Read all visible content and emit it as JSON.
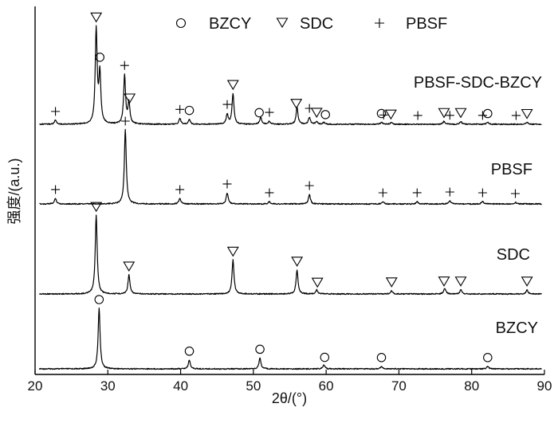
{
  "chart_data": {
    "type": "line",
    "xlabel": "2θ/(°)",
    "ylabel": "强度/(a.u.)",
    "xlim": [
      20,
      90
    ],
    "xticks": [
      20,
      30,
      40,
      50,
      60,
      70,
      80,
      90
    ],
    "grid": false,
    "legend": {
      "placement": "top-right",
      "items": [
        {
          "marker": "circle",
          "label": "BZCY"
        },
        {
          "marker": "triangle-down",
          "label": "SDC"
        },
        {
          "marker": "plus",
          "label": "PBSF"
        }
      ]
    },
    "series": [
      {
        "name": "BZCY",
        "peaks": [
          {
            "x": 28.8,
            "h": 0.95
          },
          {
            "x": 41.2,
            "h": 0.14
          },
          {
            "x": 50.9,
            "h": 0.17
          },
          {
            "x": 59.7,
            "h": 0.06
          },
          {
            "x": 67.6,
            "h": 0.04
          },
          {
            "x": 82.2,
            "h": 0.04
          }
        ],
        "markers": [
          {
            "x": 28.8,
            "type": "circle"
          },
          {
            "x": 41.2,
            "type": "circle"
          },
          {
            "x": 50.9,
            "type": "circle"
          },
          {
            "x": 59.8,
            "type": "circle"
          },
          {
            "x": 67.6,
            "type": "circle"
          },
          {
            "x": 82.2,
            "type": "circle"
          }
        ]
      },
      {
        "name": "SDC",
        "peaks": [
          {
            "x": 28.4,
            "h": 0.95
          },
          {
            "x": 32.9,
            "h": 0.23
          },
          {
            "x": 47.2,
            "h": 0.41
          },
          {
            "x": 56.0,
            "h": 0.29
          },
          {
            "x": 58.7,
            "h": 0.05
          },
          {
            "x": 69.0,
            "h": 0.04
          },
          {
            "x": 76.3,
            "h": 0.07
          },
          {
            "x": 78.5,
            "h": 0.05
          },
          {
            "x": 87.6,
            "h": 0.05
          }
        ],
        "markers": [
          {
            "x": 28.4,
            "type": "triangle"
          },
          {
            "x": 32.9,
            "type": "triangle"
          },
          {
            "x": 47.2,
            "type": "triangle"
          },
          {
            "x": 56.0,
            "type": "triangle"
          },
          {
            "x": 58.8,
            "type": "triangle"
          },
          {
            "x": 69.0,
            "type": "triangle"
          },
          {
            "x": 76.2,
            "type": "triangle"
          },
          {
            "x": 78.5,
            "type": "triangle"
          },
          {
            "x": 87.6,
            "type": "triangle"
          }
        ]
      },
      {
        "name": "PBSF",
        "peaks": [
          {
            "x": 22.8,
            "h": 0.07
          },
          {
            "x": 32.4,
            "h": 0.93
          },
          {
            "x": 39.9,
            "h": 0.07
          },
          {
            "x": 46.4,
            "h": 0.14
          },
          {
            "x": 52.2,
            "h": 0.03
          },
          {
            "x": 57.7,
            "h": 0.12
          },
          {
            "x": 67.8,
            "h": 0.03
          },
          {
            "x": 72.5,
            "h": 0.03
          },
          {
            "x": 77.0,
            "h": 0.04
          },
          {
            "x": 81.5,
            "h": 0.03
          },
          {
            "x": 86.0,
            "h": 0.02
          }
        ],
        "markers": [
          {
            "x": 22.8,
            "type": "plus"
          },
          {
            "x": 32.4,
            "type": "plus"
          },
          {
            "x": 39.9,
            "type": "plus"
          },
          {
            "x": 46.4,
            "type": "plus"
          },
          {
            "x": 52.2,
            "type": "plus"
          },
          {
            "x": 57.7,
            "type": "plus"
          },
          {
            "x": 67.8,
            "type": "plus"
          },
          {
            "x": 72.5,
            "type": "plus"
          },
          {
            "x": 77.0,
            "type": "plus"
          },
          {
            "x": 81.5,
            "type": "plus"
          },
          {
            "x": 86.0,
            "type": "plus"
          }
        ]
      },
      {
        "name": "PBSF-SDC-BZCY",
        "peaks": [
          {
            "x": 22.8,
            "h": 0.04
          },
          {
            "x": 28.4,
            "h": 0.95
          },
          {
            "x": 28.9,
            "h": 0.5
          },
          {
            "x": 32.3,
            "h": 0.49
          },
          {
            "x": 32.9,
            "h": 0.21
          },
          {
            "x": 39.9,
            "h": 0.06
          },
          {
            "x": 41.2,
            "h": 0.05
          },
          {
            "x": 46.4,
            "h": 0.1
          },
          {
            "x": 47.2,
            "h": 0.31
          },
          {
            "x": 51.0,
            "h": 0.07
          },
          {
            "x": 52.2,
            "h": 0.03
          },
          {
            "x": 56.0,
            "h": 0.17
          },
          {
            "x": 57.7,
            "h": 0.07
          },
          {
            "x": 58.7,
            "h": 0.03
          },
          {
            "x": 59.7,
            "h": 0.02
          },
          {
            "x": 67.6,
            "h": 0.02
          },
          {
            "x": 69.0,
            "h": 0.02
          },
          {
            "x": 76.2,
            "h": 0.03
          },
          {
            "x": 78.5,
            "h": 0.03
          },
          {
            "x": 82.2,
            "h": 0.02
          },
          {
            "x": 87.6,
            "h": 0.02
          }
        ],
        "markers": [
          {
            "x": 22.8,
            "type": "plus"
          },
          {
            "x": 28.4,
            "type": "triangle"
          },
          {
            "x": 28.9,
            "type": "circle"
          },
          {
            "x": 32.3,
            "type": "plus"
          },
          {
            "x": 33.0,
            "type": "triangle"
          },
          {
            "x": 39.9,
            "type": "plus"
          },
          {
            "x": 41.2,
            "type": "circle"
          },
          {
            "x": 46.4,
            "type": "plus"
          },
          {
            "x": 47.2,
            "type": "triangle"
          },
          {
            "x": 50.8,
            "type": "circle"
          },
          {
            "x": 52.2,
            "type": "plus"
          },
          {
            "x": 55.9,
            "type": "triangle"
          },
          {
            "x": 57.7,
            "type": "plus"
          },
          {
            "x": 58.7,
            "type": "triangle"
          },
          {
            "x": 59.9,
            "type": "circle"
          },
          {
            "x": 67.6,
            "type": "circle"
          },
          {
            "x": 67.9,
            "type": "plus"
          },
          {
            "x": 68.9,
            "type": "triangle"
          },
          {
            "x": 72.6,
            "type": "plus"
          },
          {
            "x": 76.2,
            "type": "triangle"
          },
          {
            "x": 77.0,
            "type": "plus"
          },
          {
            "x": 78.5,
            "type": "triangle"
          },
          {
            "x": 81.5,
            "type": "plus"
          },
          {
            "x": 82.2,
            "type": "circle"
          },
          {
            "x": 86.1,
            "type": "plus"
          },
          {
            "x": 87.6,
            "type": "triangle"
          }
        ]
      }
    ]
  }
}
